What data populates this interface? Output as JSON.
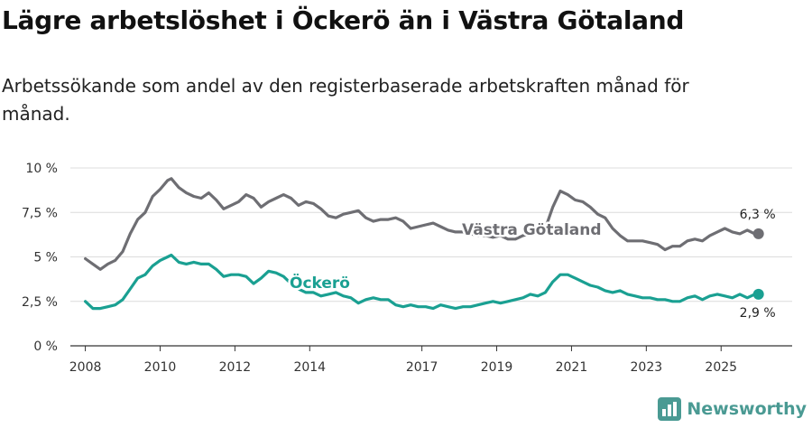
{
  "title": "Lägre arbetslöshet i Öckerö än i Västra Götaland",
  "subtitle": "Arbetssökande som andel av den registerbaserade arbetskraften månad för månad.",
  "brand": {
    "name": "Newsworthy",
    "icon": "bar-chart-logo-icon",
    "color": "#4a9a93"
  },
  "chart_data": {
    "type": "line",
    "title": "Lägre arbetslöshet i Öckerö än i Västra Götaland",
    "xlabel": "",
    "ylabel": "",
    "xlim": [
      2007.6,
      2026.9
    ],
    "ylim": [
      0,
      10
    ],
    "grid": true,
    "y_ticks": [
      {
        "value": 0,
        "label": "0 %"
      },
      {
        "value": 2.5,
        "label": "2,5 %"
      },
      {
        "value": 5,
        "label": "5 %"
      },
      {
        "value": 7.5,
        "label": "7,5 %"
      },
      {
        "value": 10,
        "label": "10 %"
      }
    ],
    "x_ticks": [
      {
        "value": 2008,
        "label": "2008"
      },
      {
        "value": 2010,
        "label": "2010"
      },
      {
        "value": 2012,
        "label": "2012"
      },
      {
        "value": 2014,
        "label": "2014"
      },
      {
        "value": 2017,
        "label": "2017"
      },
      {
        "value": 2019,
        "label": "2019"
      },
      {
        "value": 2021,
        "label": "2021"
      },
      {
        "value": 2023,
        "label": "2023"
      },
      {
        "value": 2025,
        "label": "2025"
      }
    ],
    "series": [
      {
        "name": "Västra Götaland",
        "color": "#6e6e73",
        "end_label": "6,3 %",
        "points": [
          [
            2008.0,
            4.9
          ],
          [
            2008.2,
            4.6
          ],
          [
            2008.4,
            4.3
          ],
          [
            2008.6,
            4.6
          ],
          [
            2008.8,
            4.8
          ],
          [
            2009.0,
            5.3
          ],
          [
            2009.2,
            6.3
          ],
          [
            2009.4,
            7.1
          ],
          [
            2009.6,
            7.5
          ],
          [
            2009.8,
            8.4
          ],
          [
            2010.0,
            8.8
          ],
          [
            2010.2,
            9.3
          ],
          [
            2010.3,
            9.4
          ],
          [
            2010.5,
            8.9
          ],
          [
            2010.7,
            8.6
          ],
          [
            2010.9,
            8.4
          ],
          [
            2011.1,
            8.3
          ],
          [
            2011.3,
            8.6
          ],
          [
            2011.5,
            8.2
          ],
          [
            2011.7,
            7.7
          ],
          [
            2011.9,
            7.9
          ],
          [
            2012.1,
            8.1
          ],
          [
            2012.3,
            8.5
          ],
          [
            2012.5,
            8.3
          ],
          [
            2012.7,
            7.8
          ],
          [
            2012.9,
            8.1
          ],
          [
            2013.1,
            8.3
          ],
          [
            2013.3,
            8.5
          ],
          [
            2013.5,
            8.3
          ],
          [
            2013.7,
            7.9
          ],
          [
            2013.9,
            8.1
          ],
          [
            2014.1,
            8.0
          ],
          [
            2014.3,
            7.7
          ],
          [
            2014.5,
            7.3
          ],
          [
            2014.7,
            7.2
          ],
          [
            2014.9,
            7.4
          ],
          [
            2015.1,
            7.5
          ],
          [
            2015.3,
            7.6
          ],
          [
            2015.5,
            7.2
          ],
          [
            2015.7,
            7.0
          ],
          [
            2015.9,
            7.1
          ],
          [
            2016.1,
            7.1
          ],
          [
            2016.3,
            7.2
          ],
          [
            2016.5,
            7.0
          ],
          [
            2016.7,
            6.6
          ],
          [
            2016.9,
            6.7
          ],
          [
            2017.1,
            6.8
          ],
          [
            2017.3,
            6.9
          ],
          [
            2017.5,
            6.7
          ],
          [
            2017.7,
            6.5
          ],
          [
            2017.9,
            6.4
          ],
          [
            2018.1,
            6.4
          ],
          [
            2018.3,
            6.3
          ],
          [
            2018.5,
            6.2
          ],
          [
            2018.7,
            6.2
          ],
          [
            2018.9,
            6.1
          ],
          [
            2019.1,
            6.2
          ],
          [
            2019.3,
            6.0
          ],
          [
            2019.5,
            6.0
          ],
          [
            2019.7,
            6.2
          ],
          [
            2019.9,
            6.3
          ],
          [
            2020.1,
            6.5
          ],
          [
            2020.3,
            6.6
          ],
          [
            2020.5,
            7.8
          ],
          [
            2020.7,
            8.7
          ],
          [
            2020.9,
            8.5
          ],
          [
            2021.1,
            8.2
          ],
          [
            2021.3,
            8.1
          ],
          [
            2021.5,
            7.8
          ],
          [
            2021.7,
            7.4
          ],
          [
            2021.9,
            7.2
          ],
          [
            2022.1,
            6.6
          ],
          [
            2022.3,
            6.2
          ],
          [
            2022.5,
            5.9
          ],
          [
            2022.7,
            5.9
          ],
          [
            2022.9,
            5.9
          ],
          [
            2023.1,
            5.8
          ],
          [
            2023.3,
            5.7
          ],
          [
            2023.5,
            5.4
          ],
          [
            2023.7,
            5.6
          ],
          [
            2023.9,
            5.6
          ],
          [
            2024.1,
            5.9
          ],
          [
            2024.3,
            6.0
          ],
          [
            2024.5,
            5.9
          ],
          [
            2024.7,
            6.2
          ],
          [
            2024.9,
            6.4
          ],
          [
            2025.1,
            6.6
          ],
          [
            2025.3,
            6.4
          ],
          [
            2025.5,
            6.3
          ],
          [
            2025.7,
            6.5
          ],
          [
            2025.9,
            6.3
          ],
          [
            2026.0,
            6.3
          ]
        ]
      },
      {
        "name": "Öckerö",
        "color": "#1aa092",
        "end_label": "2,9 %",
        "points": [
          [
            2008.0,
            2.5
          ],
          [
            2008.2,
            2.1
          ],
          [
            2008.4,
            2.1
          ],
          [
            2008.6,
            2.2
          ],
          [
            2008.8,
            2.3
          ],
          [
            2009.0,
            2.6
          ],
          [
            2009.2,
            3.2
          ],
          [
            2009.4,
            3.8
          ],
          [
            2009.6,
            4.0
          ],
          [
            2009.8,
            4.5
          ],
          [
            2010.0,
            4.8
          ],
          [
            2010.2,
            5.0
          ],
          [
            2010.3,
            5.1
          ],
          [
            2010.5,
            4.7
          ],
          [
            2010.7,
            4.6
          ],
          [
            2010.9,
            4.7
          ],
          [
            2011.1,
            4.6
          ],
          [
            2011.3,
            4.6
          ],
          [
            2011.5,
            4.3
          ],
          [
            2011.7,
            3.9
          ],
          [
            2011.9,
            4.0
          ],
          [
            2012.1,
            4.0
          ],
          [
            2012.3,
            3.9
          ],
          [
            2012.5,
            3.5
          ],
          [
            2012.7,
            3.8
          ],
          [
            2012.9,
            4.2
          ],
          [
            2013.1,
            4.1
          ],
          [
            2013.3,
            3.9
          ],
          [
            2013.5,
            3.5
          ],
          [
            2013.7,
            3.2
          ],
          [
            2013.9,
            3.0
          ],
          [
            2014.1,
            3.0
          ],
          [
            2014.3,
            2.8
          ],
          [
            2014.5,
            2.9
          ],
          [
            2014.7,
            3.0
          ],
          [
            2014.9,
            2.8
          ],
          [
            2015.1,
            2.7
          ],
          [
            2015.3,
            2.4
          ],
          [
            2015.5,
            2.6
          ],
          [
            2015.7,
            2.7
          ],
          [
            2015.9,
            2.6
          ],
          [
            2016.1,
            2.6
          ],
          [
            2016.3,
            2.3
          ],
          [
            2016.5,
            2.2
          ],
          [
            2016.7,
            2.3
          ],
          [
            2016.9,
            2.2
          ],
          [
            2017.1,
            2.2
          ],
          [
            2017.3,
            2.1
          ],
          [
            2017.5,
            2.3
          ],
          [
            2017.7,
            2.2
          ],
          [
            2017.9,
            2.1
          ],
          [
            2018.1,
            2.2
          ],
          [
            2018.3,
            2.2
          ],
          [
            2018.5,
            2.3
          ],
          [
            2018.7,
            2.4
          ],
          [
            2018.9,
            2.5
          ],
          [
            2019.1,
            2.4
          ],
          [
            2019.3,
            2.5
          ],
          [
            2019.5,
            2.6
          ],
          [
            2019.7,
            2.7
          ],
          [
            2019.9,
            2.9
          ],
          [
            2020.1,
            2.8
          ],
          [
            2020.3,
            3.0
          ],
          [
            2020.5,
            3.6
          ],
          [
            2020.7,
            4.0
          ],
          [
            2020.9,
            4.0
          ],
          [
            2021.1,
            3.8
          ],
          [
            2021.3,
            3.6
          ],
          [
            2021.5,
            3.4
          ],
          [
            2021.7,
            3.3
          ],
          [
            2021.9,
            3.1
          ],
          [
            2022.1,
            3.0
          ],
          [
            2022.3,
            3.1
          ],
          [
            2022.5,
            2.9
          ],
          [
            2022.7,
            2.8
          ],
          [
            2022.9,
            2.7
          ],
          [
            2023.1,
            2.7
          ],
          [
            2023.3,
            2.6
          ],
          [
            2023.5,
            2.6
          ],
          [
            2023.7,
            2.5
          ],
          [
            2023.9,
            2.5
          ],
          [
            2024.1,
            2.7
          ],
          [
            2024.3,
            2.8
          ],
          [
            2024.5,
            2.6
          ],
          [
            2024.7,
            2.8
          ],
          [
            2024.9,
            2.9
          ],
          [
            2025.1,
            2.8
          ],
          [
            2025.3,
            2.7
          ],
          [
            2025.5,
            2.9
          ],
          [
            2025.7,
            2.7
          ],
          [
            2025.9,
            2.9
          ],
          [
            2026.0,
            2.9
          ]
        ]
      }
    ]
  }
}
